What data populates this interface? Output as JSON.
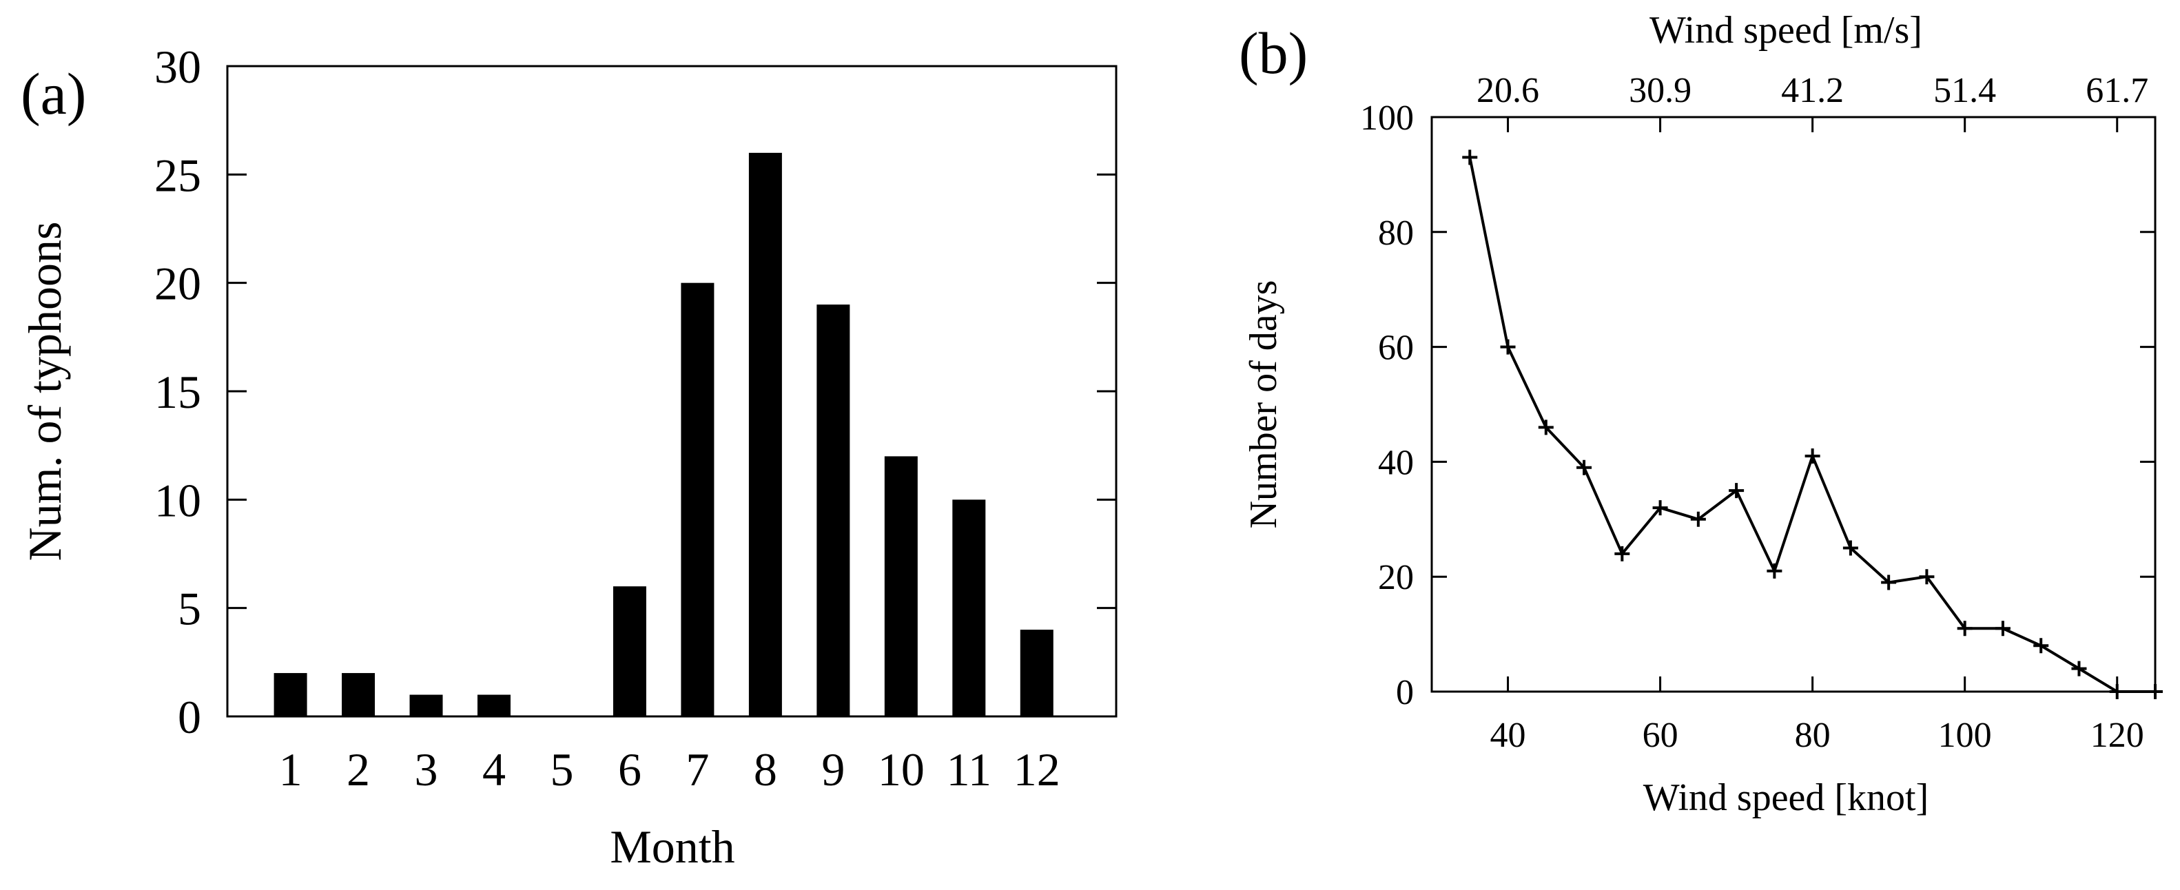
{
  "chart_data": [
    {
      "panel": "(a)",
      "type": "bar",
      "title": "",
      "xlabel": "Month",
      "ylabel": "Num. of typhoons",
      "categories": [
        "1",
        "2",
        "3",
        "4",
        "5",
        "6",
        "7",
        "8",
        "9",
        "10",
        "11",
        "12"
      ],
      "values": [
        2,
        2,
        1,
        1,
        0,
        6,
        20,
        26,
        19,
        12,
        10,
        4
      ],
      "ylim": [
        0,
        30
      ],
      "yticks": [
        0,
        5,
        10,
        15,
        20,
        25,
        30
      ],
      "color": "#000000",
      "grid": false
    },
    {
      "panel": "(b)",
      "type": "line",
      "title": "",
      "xlabel": "Wind speed [knot]",
      "ylabel": "Number of days",
      "top_xlabel": "Wind speed [m/s]",
      "x": [
        35,
        40,
        45,
        50,
        55,
        60,
        65,
        70,
        75,
        80,
        85,
        90,
        95,
        100,
        105,
        110,
        115,
        120,
        125
      ],
      "y": [
        93,
        60,
        46,
        39,
        24,
        32,
        30,
        35,
        21,
        41,
        25,
        19,
        20,
        11,
        11,
        8,
        4,
        0,
        0
      ],
      "xlim": [
        30,
        125
      ],
      "ylim": [
        0,
        100
      ],
      "xticks": [
        40,
        60,
        80,
        100,
        120
      ],
      "yticks": [
        0,
        20,
        40,
        60,
        80,
        100
      ],
      "top_ticks": [
        {
          "knot": 40,
          "label": "20.6"
        },
        {
          "knot": 60,
          "label": "30.9"
        },
        {
          "knot": 80,
          "label": "41.2"
        },
        {
          "knot": 100,
          "label": "51.4"
        },
        {
          "knot": 120,
          "label": "61.7"
        }
      ],
      "marker": "+",
      "color": "#000000",
      "grid": false
    }
  ]
}
